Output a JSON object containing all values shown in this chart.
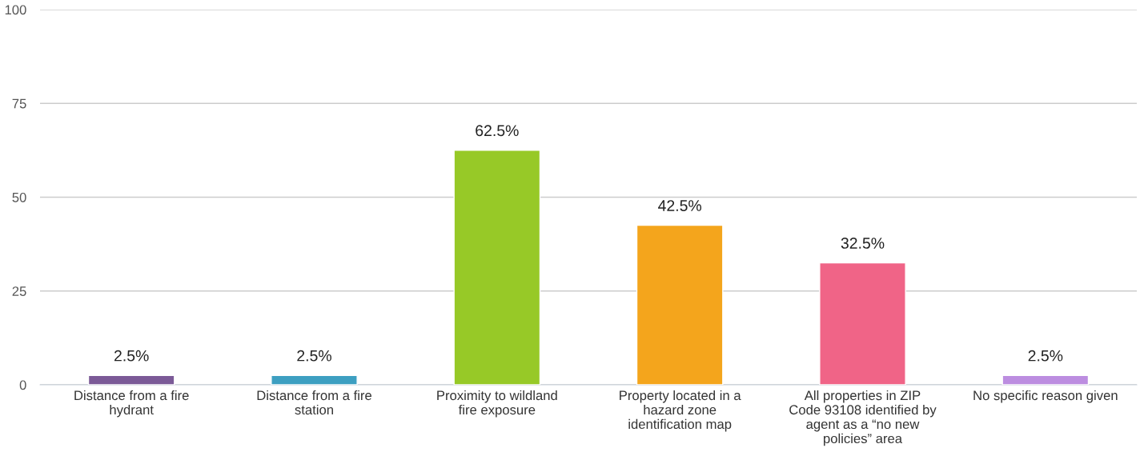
{
  "chart_data": {
    "type": "bar",
    "categories": [
      "Distance from a fire hydrant",
      "Distance from a fire station",
      "Proximity to wildland fire exposure",
      "Property located in a hazard zone identification map",
      "All properties in ZIP Code 93108 identified by agent as a “no new policies” area",
      "No specific reason given"
    ],
    "values": [
      2.5,
      2.5,
      62.5,
      42.5,
      32.5,
      2.5
    ],
    "colors": [
      "#7b5a97",
      "#3d9fc1",
      "#97c927",
      "#f4a51c",
      "#f06487",
      "#bc8de0"
    ],
    "value_labels": [
      "2.5%",
      "2.5%",
      "62.5%",
      "42.5%",
      "32.5%",
      "2.5%"
    ],
    "ylim": [
      0,
      100
    ],
    "yticks": [
      0,
      25,
      50,
      75,
      100
    ],
    "grid": "y",
    "legend": false
  }
}
